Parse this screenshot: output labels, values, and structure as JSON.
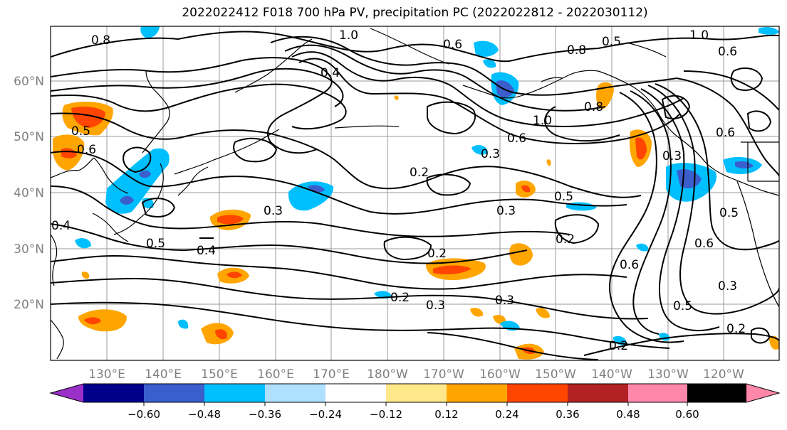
{
  "title": "2022022412 F018 700 hPa PV, precipitation PC (2022022812 - 2022030112)",
  "latitude_labels": [
    "60°N",
    "50°N",
    "40°N",
    "30°N",
    "20°N"
  ],
  "longitude_labels": [
    "130°E",
    "140°E",
    "150°E",
    "160°E",
    "170°E",
    "180°W",
    "170°W",
    "160°W",
    "150°W",
    "140°W",
    "130°W",
    "120°W"
  ],
  "colorbar": {
    "ticks": [
      "−0.60",
      "−0.48",
      "−0.36",
      "−0.24",
      "−0.12",
      "0.12",
      "0.24",
      "0.36",
      "0.48",
      "0.60"
    ],
    "colors": [
      "#9b30c8",
      "#00008b",
      "#3a5fcd",
      "#00bfff",
      "#b0e0ff",
      "#ffffff",
      "#ffe88a",
      "#ffa500",
      "#ff4500",
      "#b22222",
      "#ff88aa"
    ]
  },
  "contour_labels": [
    "0.8",
    "1.0",
    "0.6",
    "0.5",
    "1.0",
    "0.6",
    "0.8",
    "0.4",
    "0.5",
    "0.6",
    "0.4",
    "0.3",
    "0.3",
    "0.2",
    "0.5",
    "0.2",
    "0.3",
    "0.5",
    "0.2",
    "0.6",
    "0.4",
    "0.2",
    "0.3",
    "0.2",
    "0.3",
    "0.2",
    "0.5",
    "0.3",
    "0.6",
    "0.8",
    "1.0",
    "0.6",
    "0.5",
    "0.6",
    "0.3"
  ]
}
